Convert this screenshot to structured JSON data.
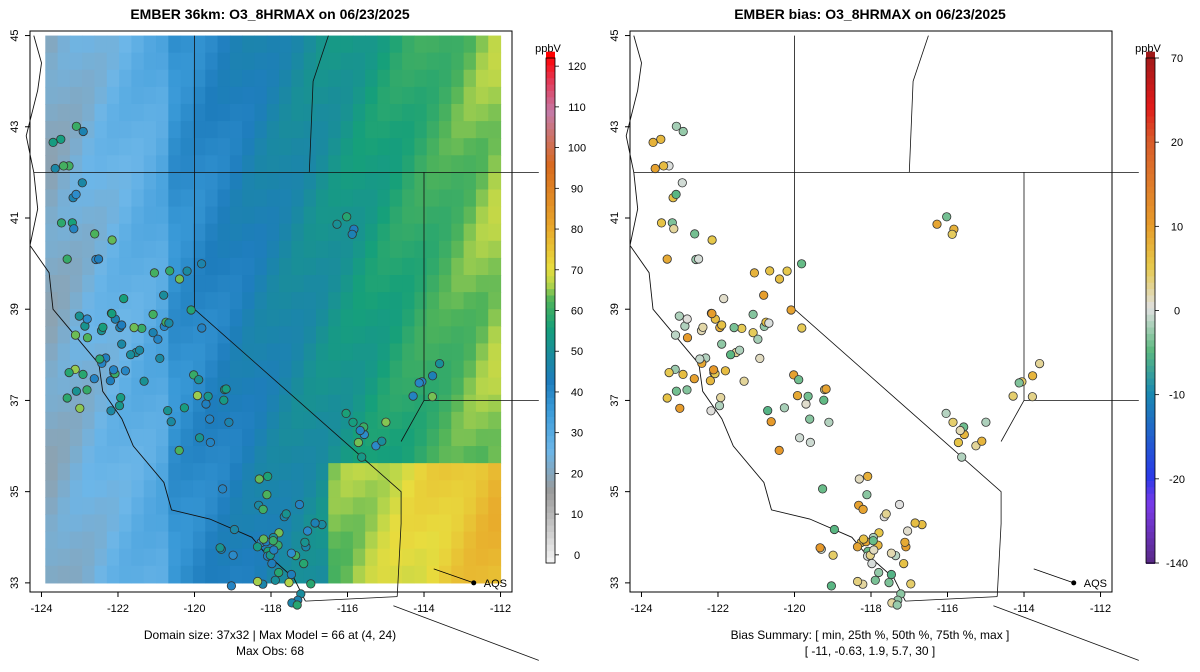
{
  "left": {
    "title": "EMBER 36km: O3_8HRMAX on 06/23/2025",
    "footer_line1": "Domain size: 37x32 | Max Model = 66 at (4, 24)",
    "footer_line2": "Max Obs: 68",
    "colorbar_unit": "ppbV",
    "colorbar_ticks": [
      "0",
      "10",
      "20",
      "30",
      "40",
      "50",
      "60",
      "70",
      "80",
      "90",
      "100",
      "110",
      "120"
    ],
    "colorbar_range": [
      -2,
      122
    ]
  },
  "right": {
    "title": "EMBER bias: O3_8HRMAX on 06/23/2025",
    "footer_line1": "Bias Summary: [ min, 25th %, 50th %, 75th %, max ]",
    "footer_line2": "[ -11,   -0.63,   1.9,   5.7,   30 ]",
    "colorbar_unit": "ppbV",
    "colorbar_ticks": [
      "-140",
      "-20",
      "-10",
      "0",
      "10",
      "20",
      "70"
    ]
  },
  "map": {
    "x_ticks": [
      "-124",
      "-122",
      "-120",
      "-118",
      "-116",
      "-114",
      "-112"
    ],
    "y_ticks": [
      "33",
      "35",
      "37",
      "39",
      "41",
      "43",
      "45"
    ],
    "lon_range": [
      -124.3,
      -111.7
    ],
    "lat_range": [
      32.8,
      45.1
    ],
    "marker_label": "AQS"
  },
  "colors": {
    "ocean_low": "#5aaee6",
    "mid": "#1f88c6",
    "green": "#1aa27a",
    "light_green": "#7dc452",
    "yellow": "#e6dc3a",
    "bias_neutral": "#d9d9d9"
  }
}
